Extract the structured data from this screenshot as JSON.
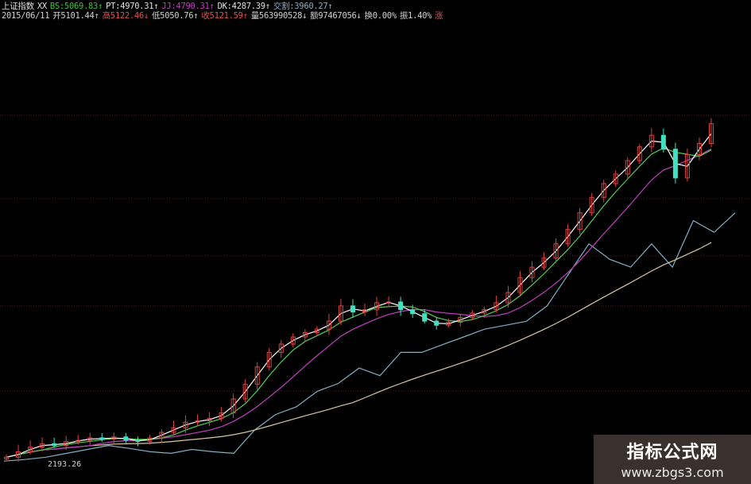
{
  "header": {
    "line1": [
      {
        "text": "上证指数",
        "color": "#e0e0e0"
      },
      {
        "text": "XX",
        "color": "#e0e0e0"
      },
      {
        "text": "BS:5069.83↑",
        "color": "#3fbf3f"
      },
      {
        "text": "PT:4970.31↑",
        "color": "#e0e0e0"
      },
      {
        "text": "JJ:4790.31↑",
        "color": "#c040c0"
      },
      {
        "text": "DK:4287.39↑",
        "color": "#e0e0e0"
      },
      {
        "text": "交割:3960.27↑",
        "color": "#7fb0c8"
      }
    ],
    "line2": [
      {
        "text": "2015/06/11",
        "color": "#d0d0d0"
      },
      {
        "text": "开5101.44↑",
        "color": "#d0d0d0"
      },
      {
        "text": "高5122.46↓",
        "color": "#e05050"
      },
      {
        "text": "低5050.76↑",
        "color": "#d0d0d0"
      },
      {
        "text": "收5121.59↑",
        "color": "#e05050"
      },
      {
        "text": "量563990528↓",
        "color": "#d0d0d0"
      },
      {
        "text": "额97467056↓",
        "color": "#d0d0d0"
      },
      {
        "text": "换0.00%",
        "color": "#d0d0d0"
      },
      {
        "text": "振1.40%",
        "color": "#d0d0d0"
      },
      {
        "text": "涨",
        "color": "#e05050"
      }
    ]
  },
  "low_label": "2193.26",
  "watermark": {
    "title": "指标公式网",
    "url": "www.zbgs3.com"
  },
  "chart_data": {
    "type": "candlestick",
    "title": "",
    "ylim": [
      2000,
      5300
    ],
    "grid": "dotted horizontal",
    "colors": {
      "up": "#e04040",
      "down": "#40e0c0",
      "ma_short": "#ffffff",
      "ma_mid": "#50d050",
      "ma_long": "#c040c0",
      "ma_slow": "#d8c8a0",
      "indicator": "#7fb0c8"
    },
    "closes": [
      2213,
      2260,
      2300,
      2330,
      2315,
      2349,
      2360,
      2382,
      2370,
      2390,
      2362,
      2350,
      2380,
      2430,
      2470,
      2518,
      2530,
      2552,
      2600,
      2721,
      2850,
      3000,
      3127,
      3200,
      3262,
      3300,
      3330,
      3400,
      3533,
      3480,
      3499,
      3560,
      3567,
      3500,
      3465,
      3400,
      3364,
      3390,
      3431,
      3470,
      3500,
      3560,
      3650,
      3780,
      3871,
      3950,
      4074,
      4200,
      4345,
      4480,
      4600,
      4683,
      4800,
      4920,
      5021,
      4900,
      4649,
      4852,
      4950,
      5122
    ],
    "indicator_line": [
      2179,
      2193,
      2213,
      2247,
      2281,
      2315,
      2290,
      2261,
      2247,
      2281,
      2261,
      2247,
      2450,
      2585,
      2653,
      2788,
      2856,
      2991,
      2924,
      3127,
      3127,
      3195,
      3262,
      3330,
      3364,
      3398,
      3533,
      3803,
      4074,
      3939,
      3871,
      4074,
      3871,
      4277,
      4175,
      4345
    ]
  }
}
